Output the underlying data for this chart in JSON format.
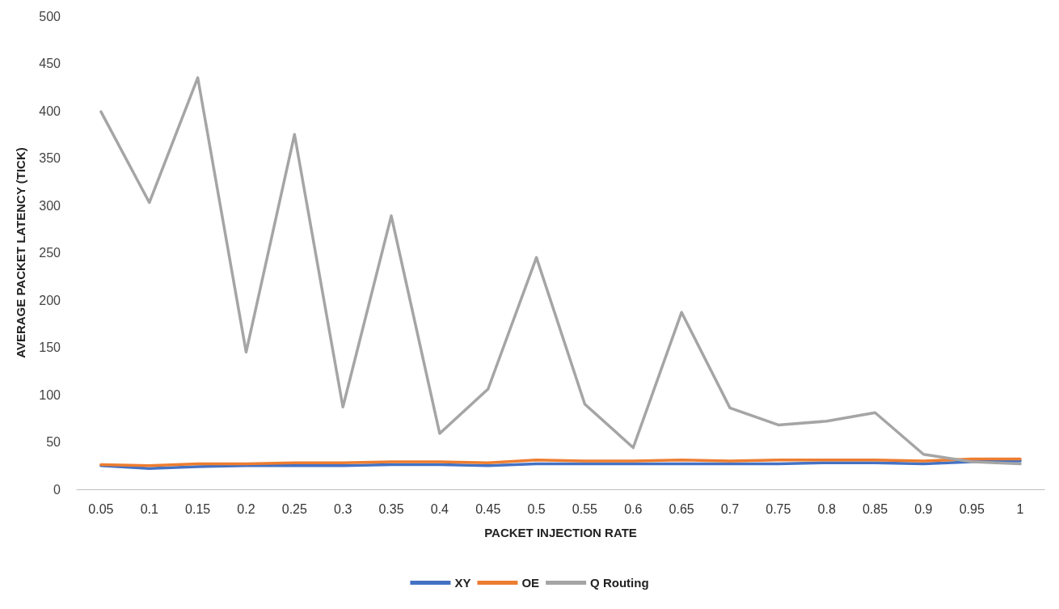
{
  "chart_data": {
    "type": "line",
    "xlabel": "PACKET INJECTION RATE",
    "ylabel": "AVERAGE PACKET LATENCY (TICK)",
    "categories": [
      "0.05",
      "0.1",
      "0.15",
      "0.2",
      "0.25",
      "0.3",
      "0.35",
      "0.4",
      "0.45",
      "0.5",
      "0.55",
      "0.6",
      "0.65",
      "0.7",
      "0.75",
      "0.8",
      "0.85",
      "0.9",
      "0.95",
      "1"
    ],
    "series": [
      {
        "name": "XY",
        "color": "#4472c4",
        "values": [
          25,
          22,
          24,
          25,
          25,
          25,
          26,
          26,
          25,
          27,
          27,
          27,
          27,
          27,
          27,
          28,
          28,
          27,
          29,
          30
        ]
      },
      {
        "name": "OE",
        "color": "#ed7d31",
        "values": [
          26,
          25,
          27,
          27,
          28,
          28,
          29,
          29,
          28,
          31,
          30,
          30,
          31,
          30,
          31,
          31,
          31,
          30,
          32,
          32
        ]
      },
      {
        "name": "Q Routing",
        "color": "#a5a5a5",
        "values": [
          399,
          303,
          435,
          145,
          375,
          87,
          289,
          59,
          106,
          245,
          90,
          44,
          187,
          86,
          68,
          72,
          81,
          37,
          29,
          27
        ]
      }
    ],
    "ylim": [
      0,
      500
    ],
    "yticks": [
      0,
      50,
      100,
      150,
      200,
      250,
      300,
      350,
      400,
      450,
      500
    ],
    "grid": false,
    "legend": "bottom",
    "marker": "none",
    "line_style": "solid"
  }
}
